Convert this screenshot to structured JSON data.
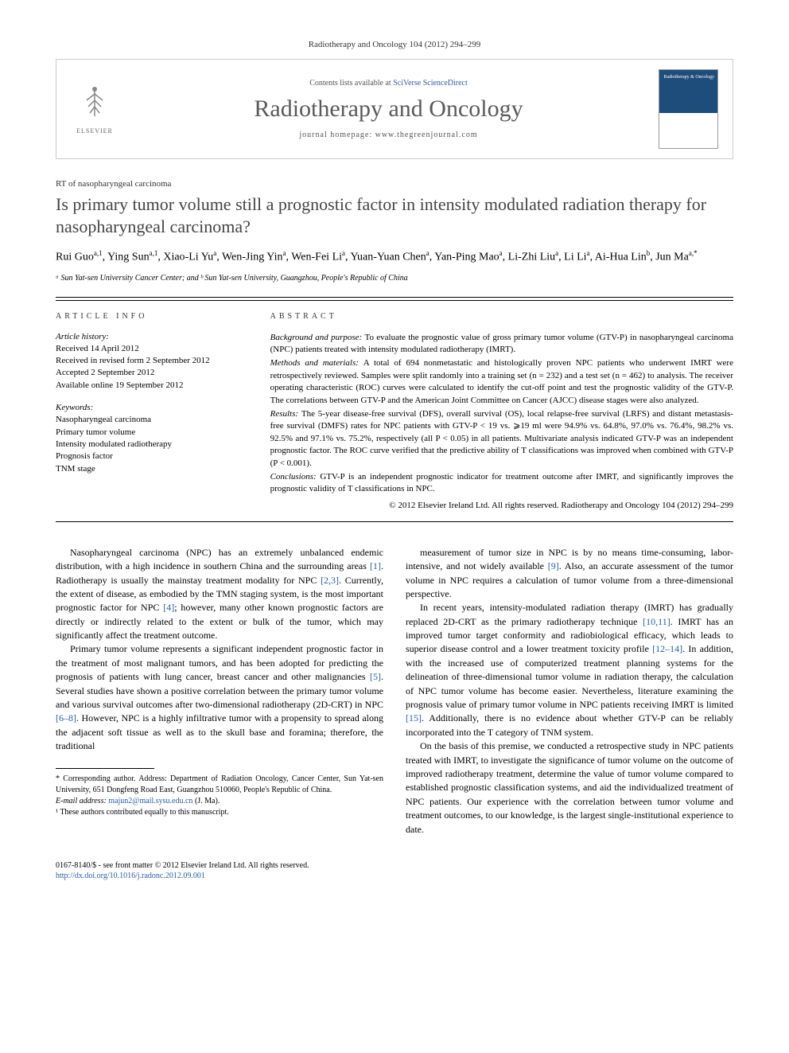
{
  "header": {
    "citation": "Radiotherapy and Oncology 104 (2012) 294–299",
    "contents_prefix": "Contents lists available at",
    "contents_link": "SciVerse ScienceDirect",
    "journal_name": "Radiotherapy and Oncology",
    "homepage_prefix": "journal homepage:",
    "homepage_url": "www.thegreenjournal.com",
    "publisher": "ELSEVIER",
    "cover_label": "Radiotherapy & Oncology"
  },
  "article": {
    "section": "RT of nasopharyngeal carcinoma",
    "title": "Is primary tumor volume still a prognostic factor in intensity modulated radiation therapy for nasopharyngeal carcinoma?",
    "authors_html": "Rui Guo<sup>a,1</sup>, Ying Sun<sup>a,1</sup>, Xiao-Li Yu<sup>a</sup>, Wen-Jing Yin<sup>a</sup>, Wen-Fei Li<sup>a</sup>, Yuan-Yuan Chen<sup>a</sup>, Yan-Ping Mao<sup>a</sup>, Li-Zhi Liu<sup>a</sup>, Li Li<sup>a</sup>, Ai-Hua Lin<sup>b</sup>, Jun Ma<sup>a,*</sup>",
    "affiliations": "ᵃ Sun Yat-sen University Cancer Center; and ᵇ Sun Yat-sen University, Guangzhou, People's Republic of China"
  },
  "info": {
    "heading": "ARTICLE INFO",
    "history_label": "Article history:",
    "history": [
      "Received 14 April 2012",
      "Received in revised form 2 September 2012",
      "Accepted 2 September 2012",
      "Available online 19 September 2012"
    ],
    "keywords_label": "Keywords:",
    "keywords": [
      "Nasopharyngeal carcinoma",
      "Primary tumor volume",
      "Intensity modulated radiotherapy",
      "Prognosis factor",
      "TNM stage"
    ]
  },
  "abstract": {
    "heading": "ABSTRACT",
    "segments": [
      {
        "label": "Background and purpose:",
        "text": "To evaluate the prognostic value of gross primary tumor volume (GTV-P) in nasopharyngeal carcinoma (NPC) patients treated with intensity modulated radiotherapy (IMRT)."
      },
      {
        "label": "Methods and materials:",
        "text": "A total of 694 nonmetastatic and histologically proven NPC patients who underwent IMRT were retrospectively reviewed. Samples were split randomly into a training set (n = 232) and a test set (n = 462) to analysis. The receiver operating characteristic (ROC) curves were calculated to identify the cut-off point and test the prognostic validity of the GTV-P. The correlations between GTV-P and the American Joint Committee on Cancer (AJCC) disease stages were also analyzed."
      },
      {
        "label": "Results:",
        "text": "The 5-year disease-free survival (DFS), overall survival (OS), local relapse-free survival (LRFS) and distant metastasis-free survival (DMFS) rates for NPC patients with GTV-P < 19 vs. ⩾19 ml were 94.9% vs. 64.8%, 97.0% vs. 76.4%, 98.2% vs. 92.5% and 97.1% vs. 75.2%, respectively (all P < 0.05) in all patients. Multivariate analysis indicated GTV-P was an independent prognostic factor. The ROC curve verified that the predictive ability of T classifications was improved when combined with GTV-P (P < 0.001)."
      },
      {
        "label": "Conclusions:",
        "text": "GTV-P is an independent prognostic indicator for treatment outcome after IMRT, and significantly improves the prognostic validity of T classifications in NPC."
      }
    ],
    "copyright": "© 2012 Elsevier Ireland Ltd. All rights reserved. Radiotherapy and Oncology 104 (2012) 294–299"
  },
  "body": {
    "left": [
      "Nasopharyngeal carcinoma (NPC) has an extremely unbalanced endemic distribution, with a high incidence in southern China and the surrounding areas [1]. Radiotherapy is usually the mainstay treatment modality for NPC [2,3]. Currently, the extent of disease, as embodied by the TMN staging system, is the most important prognostic factor for NPC [4]; however, many other known prognostic factors are directly or indirectly related to the extent or bulk of the tumor, which may significantly affect the treatment outcome.",
      "Primary tumor volume represents a significant independent prognostic factor in the treatment of most malignant tumors, and has been adopted for predicting the prognosis of patients with lung cancer, breast cancer and other malignancies [5]. Several studies have shown a positive correlation between the primary tumor volume and various survival outcomes after two-dimensional radiotherapy (2D-CRT) in NPC [6–8]. However, NPC is a highly infiltrative tumor with a propensity to spread along the adjacent soft tissue as well as to the skull base and foramina; therefore, the traditional"
    ],
    "right": [
      "measurement of tumor size in NPC is by no means time-consuming, labor-intensive, and not widely available [9]. Also, an accurate assessment of the tumor volume in NPC requires a calculation of tumor volume from a three-dimensional perspective.",
      "In recent years, intensity-modulated radiation therapy (IMRT) has gradually replaced 2D-CRT as the primary radiotherapy technique [10,11]. IMRT has an improved tumor target conformity and radiobiological efficacy, which leads to superior disease control and a lower treatment toxicity profile [12–14]. In addition, with the increased use of computerized treatment planning systems for the delineation of three-dimensional tumor volume in radiation therapy, the calculation of NPC tumor volume has become easier. Nevertheless, literature examining the prognosis value of primary tumor volume in NPC patients receiving IMRT is limited [15]. Additionally, there is no evidence about whether GTV-P can be reliably incorporated into the T category of TNM system.",
      "On the basis of this premise, we conducted a retrospective study in NPC patients treated with IMRT, to investigate the significance of tumor volume on the outcome of improved radiotherapy treatment, determine the value of tumor volume compared to established prognostic classification systems, and aid the individualized treatment of NPC patients. Our experience with the correlation between tumor volume and treatment outcomes, to our knowledge, is the largest single-institutional experience to date."
    ]
  },
  "footnotes": {
    "corresponding": "* Corresponding author. Address: Department of Radiation Oncology, Cancer Center, Sun Yat-sen University, 651 Dongfeng Road East, Guangzhou 510060, People's Republic of China.",
    "email_label": "E-mail address:",
    "email": "majun2@mail.sysu.edu.cn",
    "email_author": "(J. Ma).",
    "contrib": "¹ These authors contributed equally to this manuscript."
  },
  "footer": {
    "line1": "0167-8140/$ - see front matter © 2012 Elsevier Ireland Ltd. All rights reserved.",
    "doi": "http://dx.doi.org/10.1016/j.radonc.2012.09.001"
  },
  "colors": {
    "link": "#2a5caa",
    "text": "#000000",
    "muted": "#555555"
  }
}
